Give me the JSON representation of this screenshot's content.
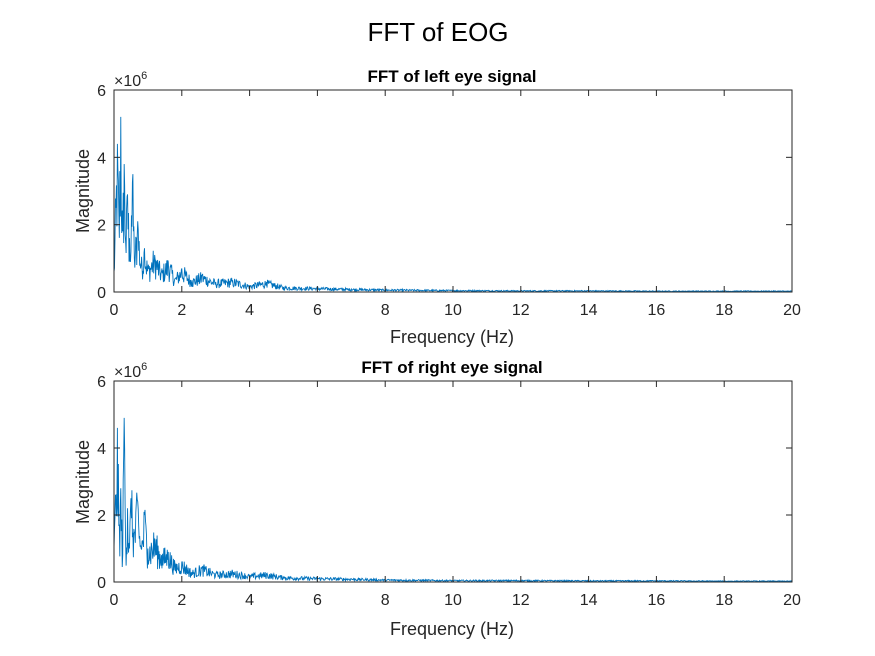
{
  "figure": {
    "title": "FFT of EOG"
  },
  "chart_data": [
    {
      "type": "line",
      "title": "FFT of left eye signal",
      "xlabel": "Frequency (Hz)",
      "ylabel": "Magnitude",
      "xlim": [
        0,
        20
      ],
      "ylim": [
        0,
        6
      ],
      "x_ticks": [
        "0",
        "2",
        "4",
        "6",
        "8",
        "10",
        "12",
        "14",
        "16",
        "18",
        "20"
      ],
      "y_ticks": [
        "0",
        "2",
        "4",
        "6"
      ],
      "y_exponent_base": "×10",
      "y_exponent_power": "6",
      "grid": false,
      "series": [
        {
          "color": "#0072BD",
          "x": [
            0,
            0.05,
            0.1,
            0.15,
            0.2,
            0.25,
            0.3,
            0.35,
            0.4,
            0.45,
            0.5,
            0.55,
            0.6,
            0.7,
            0.8,
            0.9,
            1.0,
            1.2,
            1.4,
            1.6,
            1.8,
            2.0,
            2.3,
            2.6,
            3.0,
            3.5,
            4.0,
            4.5,
            5.0,
            6.0,
            7.0,
            8.0,
            10.0,
            12.0,
            14.0,
            16.0,
            18.0,
            20.0
          ],
          "y": [
            0.6,
            2.5,
            4.4,
            2.0,
            5.2,
            1.8,
            3.8,
            1.5,
            2.9,
            1.6,
            1.2,
            3.5,
            1.0,
            2.1,
            0.8,
            1.3,
            0.7,
            1.1,
            0.6,
            0.9,
            0.4,
            0.7,
            0.35,
            0.5,
            0.3,
            0.35,
            0.2,
            0.3,
            0.15,
            0.12,
            0.09,
            0.07,
            0.05,
            0.04,
            0.04,
            0.03,
            0.03,
            0.03
          ]
        }
      ]
    },
    {
      "type": "line",
      "title": "FFT of right eye signal",
      "xlabel": "Frequency (Hz)",
      "ylabel": "Magnitude",
      "xlim": [
        0,
        20
      ],
      "ylim": [
        0,
        6
      ],
      "x_ticks": [
        "0",
        "2",
        "4",
        "6",
        "8",
        "10",
        "12",
        "14",
        "16",
        "18",
        "20"
      ],
      "y_ticks": [
        "0",
        "2",
        "4",
        "6"
      ],
      "y_exponent_base": "×10",
      "y_exponent_power": "6",
      "grid": false,
      "series": [
        {
          "color": "#0072BD",
          "x": [
            0,
            0.05,
            0.1,
            0.15,
            0.2,
            0.25,
            0.3,
            0.35,
            0.4,
            0.45,
            0.5,
            0.6,
            0.7,
            0.8,
            0.9,
            1.0,
            1.2,
            1.4,
            1.6,
            1.8,
            2.0,
            2.3,
            2.6,
            3.0,
            3.5,
            4.0,
            4.5,
            5.0,
            6.0,
            7.0,
            8.0,
            10.0,
            12.0,
            14.0,
            16.0,
            18.0,
            20.0
          ],
          "y": [
            1.0,
            2.6,
            4.6,
            1.5,
            2.8,
            0.8,
            4.9,
            1.2,
            2.2,
            1.0,
            2.5,
            1.5,
            2.4,
            1.0,
            2.0,
            1.0,
            1.3,
            0.8,
            0.9,
            0.5,
            0.6,
            0.3,
            0.45,
            0.25,
            0.3,
            0.2,
            0.25,
            0.15,
            0.12,
            0.1,
            0.07,
            0.05,
            0.05,
            0.04,
            0.04,
            0.03,
            0.03
          ]
        }
      ]
    }
  ]
}
